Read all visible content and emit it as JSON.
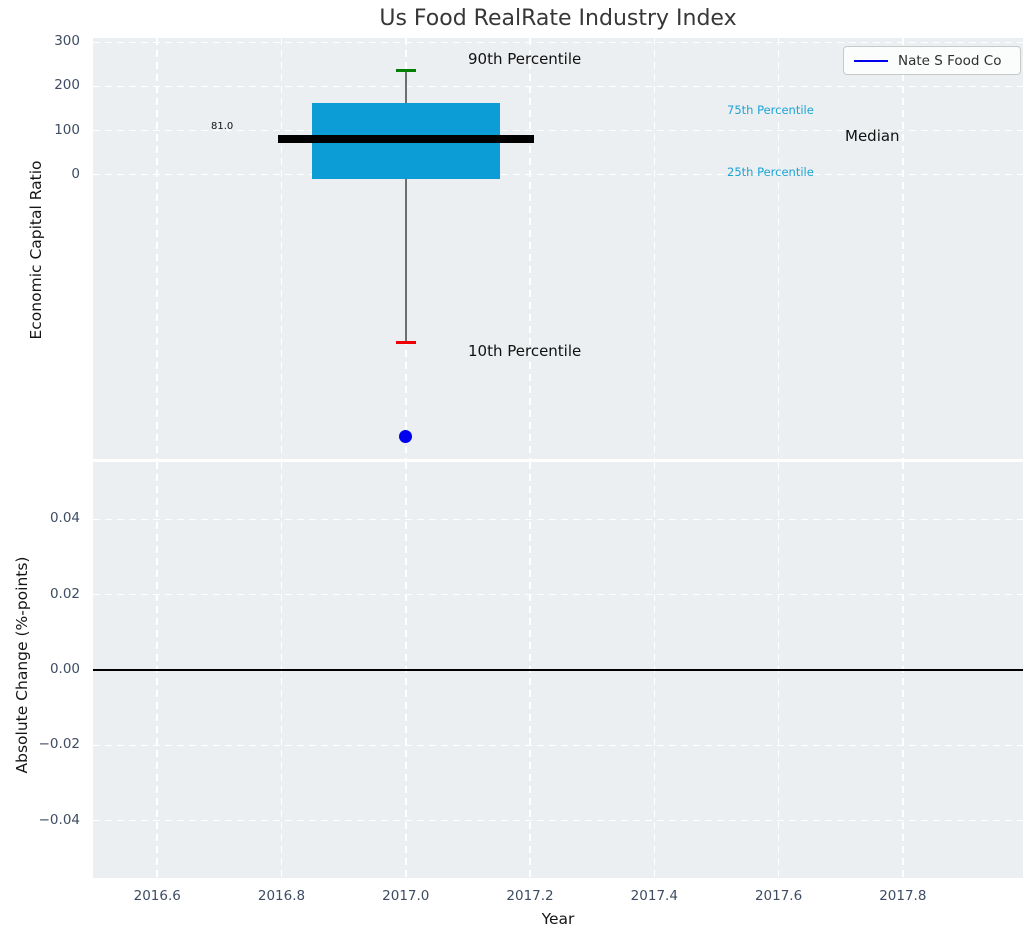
{
  "title": "Us Food RealRate Industry Index",
  "legend": {
    "label": "Nate S Food Co",
    "line_color": "#0000ee"
  },
  "axes": {
    "xlabel": "Year",
    "xlim": [
      2016.4966,
      2017.9934
    ],
    "xticks": [
      {
        "v": 2016.6,
        "label": "2016.6"
      },
      {
        "v": 2016.8,
        "label": "2016.8"
      },
      {
        "v": 2017.0,
        "label": "2017.0"
      },
      {
        "v": 2017.2,
        "label": "2017.2"
      },
      {
        "v": 2017.4,
        "label": "2017.4"
      },
      {
        "v": 2017.6,
        "label": "2017.6"
      },
      {
        "v": 2017.8,
        "label": "2017.8"
      }
    ]
  },
  "annotations": {
    "p90": "90th Percentile",
    "p75": "75th Percentile",
    "median": "Median",
    "p25": "25th Percentile",
    "p10": "10th Percentile",
    "median_value": "81.0"
  },
  "colors": {
    "box_fill": "#0c9dd6",
    "percentile_text": "#1ba3d6",
    "p90_cap": "#008000",
    "p10_cap": "#ee0000",
    "median_line": "#000000",
    "whisker_line": "#6e6e6e",
    "company_point": "#0000ee",
    "zero_line": "#000000",
    "axes_bg": "#eceff1",
    "grid": "#ffffff",
    "tick_text": "#3e4d63"
  },
  "chart_data": [
    {
      "type": "boxplot",
      "title": "Us Food RealRate Industry Index",
      "ylabel": "Economic Capital Ratio",
      "ylim": [
        -645,
        310
      ],
      "grid": true,
      "yticks": [
        {
          "v": 300,
          "label": "300"
        },
        {
          "v": 200,
          "label": "200"
        },
        {
          "v": 100,
          "label": "100"
        },
        {
          "v": 0,
          "label": "0"
        }
      ],
      "box": {
        "x": 2017.0,
        "p90": 236,
        "p75": 162,
        "median": 81.0,
        "p25": -10,
        "p10": -381,
        "box_halfwidth_years": 0.151,
        "median_halfwidth_years": 0.206,
        "cap_halfwidth_years": 0.016
      },
      "company_point": {
        "x": 2017.0,
        "y": -595,
        "name": "Nate S Food Co"
      }
    },
    {
      "type": "line",
      "ylabel": "Absolute Change (%-points)",
      "ylim": [
        -0.0552,
        0.0552
      ],
      "grid": true,
      "yticks": [
        {
          "v": 0.04,
          "label": "0.04"
        },
        {
          "v": 0.02,
          "label": "0.02"
        },
        {
          "v": 0.0,
          "label": "0.00"
        },
        {
          "v": -0.02,
          "label": "−0.02"
        },
        {
          "v": -0.04,
          "label": "−0.04"
        }
      ],
      "zero_line_y": 0.0,
      "series": []
    }
  ]
}
